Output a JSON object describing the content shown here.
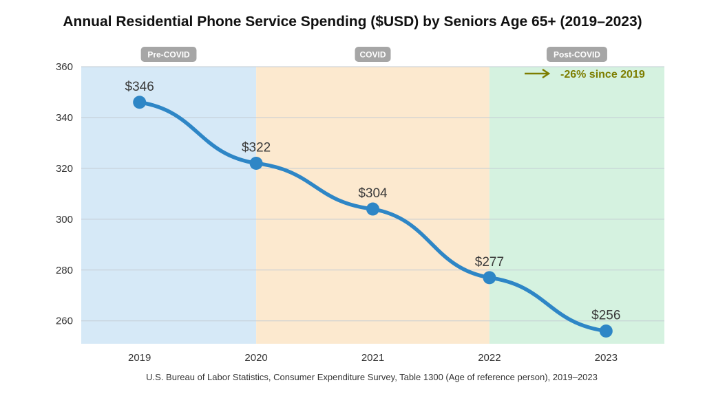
{
  "chart_data": {
    "type": "line",
    "title": "Annual Residential Phone Service Spending ($USD) by Seniors Age 65+ (2019–2023)",
    "xlabel": "",
    "ylabel": "",
    "categories": [
      "2019",
      "2020",
      "2021",
      "2022",
      "2023"
    ],
    "values": [
      346,
      322,
      304,
      277,
      256
    ],
    "data_labels": [
      "$346",
      "$322",
      "$304",
      "$277",
      "$256"
    ],
    "ylim": [
      251,
      360
    ],
    "yticks": [
      260,
      280,
      300,
      320,
      340,
      360
    ],
    "grid": true,
    "legend": "none",
    "line_color": "#2e86c6",
    "periods": [
      {
        "label": "Pre-COVID",
        "from": 2018.5,
        "to": 2020,
        "color": "#d6e9f7"
      },
      {
        "label": "COVID",
        "from": 2020,
        "to": 2022,
        "color": "#fce9cf"
      },
      {
        "label": "Post-COVID",
        "from": 2022,
        "to": 2023.5,
        "color": "#d5f2e0"
      }
    ],
    "annotation": {
      "text": "-26% since 2019",
      "color": "#7d7d00",
      "icon": "arrow-right-icon"
    },
    "source": "U.S. Bureau of Labor Statistics, Consumer Expenditure Survey, Table 1300 (Age of reference person), 2019–2023"
  }
}
